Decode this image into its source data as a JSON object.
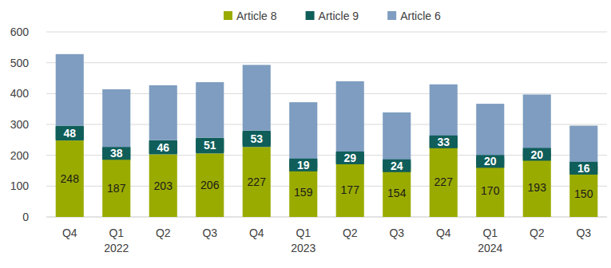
{
  "chart_data": {
    "type": "bar",
    "stacked": true,
    "grid": true,
    "legend": "top",
    "categories": [
      "Q4",
      "Q1",
      "Q2",
      "Q3",
      "Q4",
      "Q1",
      "Q2",
      "Q3",
      "Q4",
      "Q1",
      "Q2",
      "Q3"
    ],
    "category_groups": [
      null,
      "2022",
      null,
      null,
      null,
      "2023",
      null,
      null,
      null,
      "2024",
      null,
      null
    ],
    "ylim": [
      0,
      600
    ],
    "yticks": [
      0,
      100,
      200,
      300,
      400,
      500,
      600
    ],
    "series": [
      {
        "name": "Article 8",
        "color": "#9aab00",
        "data_labels": true,
        "values": [
          248,
          187,
          203,
          206,
          227,
          159,
          177,
          154,
          227,
          170,
          193,
          150
        ]
      },
      {
        "name": "Article 9",
        "color": "#0f5e5a",
        "data_labels": true,
        "values": [
          48,
          38,
          46,
          51,
          53,
          19,
          29,
          24,
          33,
          20,
          20,
          16
        ]
      },
      {
        "name": "Article 6",
        "color": "#7e9dc0",
        "data_labels": false,
        "values": [
          232,
          189,
          178,
          180,
          213,
          194,
          234,
          161,
          170,
          177,
          184,
          130
        ]
      }
    ]
  }
}
